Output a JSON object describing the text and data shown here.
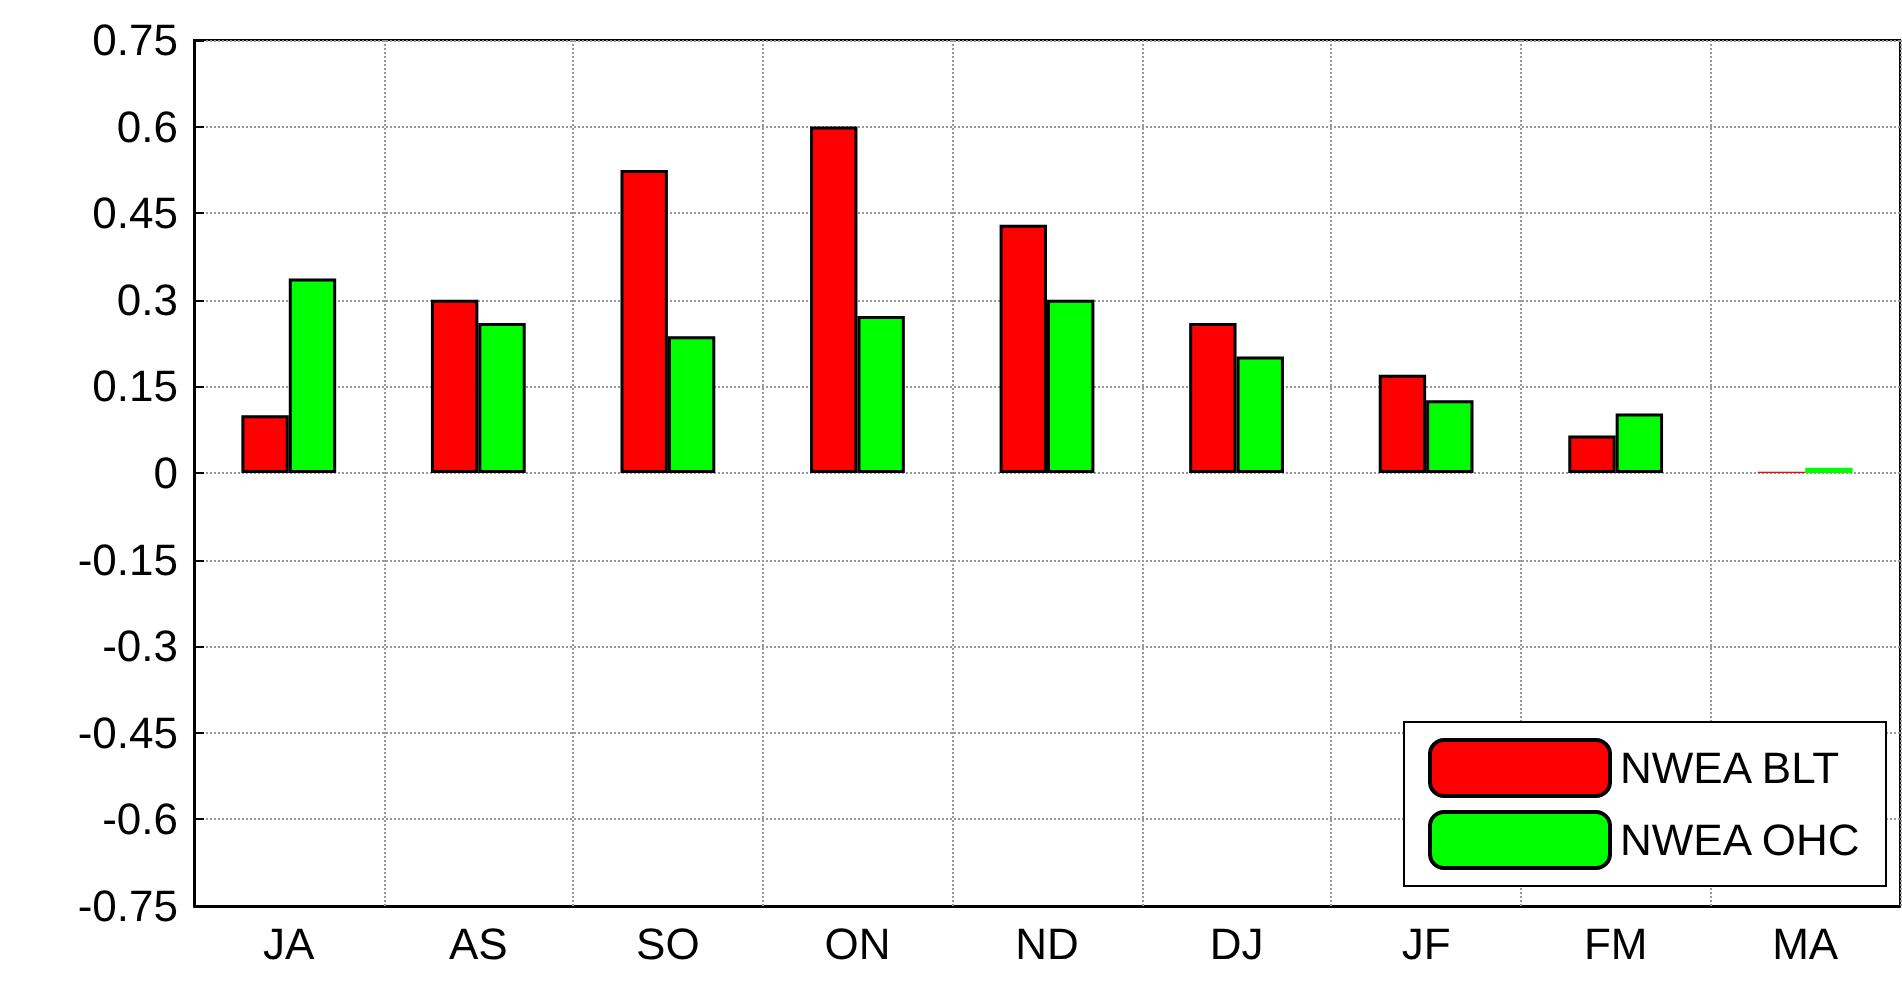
{
  "chart_data": {
    "type": "bar",
    "categories": [
      "JA",
      "AS",
      "SO",
      "ON",
      "ND",
      "DJ",
      "JF",
      "FM",
      "MA"
    ],
    "series": [
      {
        "name": "NWEA BLT",
        "color": "#ff0000",
        "values": [
          0.1,
          0.3,
          0.525,
          0.6,
          0.43,
          0.26,
          0.17,
          0.065,
          0.002
        ]
      },
      {
        "name": "NWEA OHC",
        "color": "#00ff00",
        "values": [
          0.337,
          0.26,
          0.237,
          0.272,
          0.3,
          0.202,
          0.126,
          0.103,
          0.009
        ]
      }
    ],
    "ylim": [
      -0.75,
      0.75
    ],
    "yticks": [
      -0.75,
      -0.6,
      -0.45,
      -0.3,
      -0.15,
      0,
      0.15,
      0.3,
      0.45,
      0.6,
      0.75
    ],
    "grid": true,
    "legend": "bottom right"
  }
}
